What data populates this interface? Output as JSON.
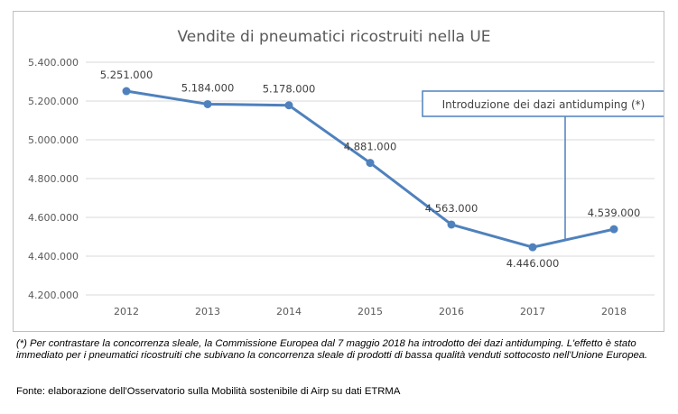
{
  "chart_data": {
    "type": "line",
    "title": "Vendite di pneumatici ricostruiti nella UE",
    "categories": [
      "2012",
      "2013",
      "2014",
      "2015",
      "2016",
      "2017",
      "2018"
    ],
    "series": [
      {
        "values": [
          5251000,
          5184000,
          5178000,
          4881000,
          4563000,
          4446000,
          4539000
        ],
        "labels": [
          "5.251.000",
          "5.184.000",
          "5.178.000",
          "4.881.000",
          "4.563.000",
          "4.446.000",
          "4.539.000"
        ],
        "color": "#4f81bd"
      }
    ],
    "ylim": [
      4200000,
      5400000
    ],
    "yticks": [
      4200000,
      4400000,
      4600000,
      4800000,
      5000000,
      5200000,
      5400000
    ],
    "ytick_labels": [
      "4.200.000",
      "4.400.000",
      "4.600.000",
      "4.800.000",
      "5.000.000",
      "5.200.000",
      "5.400.000"
    ],
    "grid": true,
    "legend": "none",
    "annotation": {
      "text": "Introduzione dei dazi antidumping (*)",
      "category_between": [
        "2017",
        "2018"
      ],
      "color": "#4f81bd"
    }
  },
  "footnote": "(*) Per contrastare la concorrenza sleale, la Commissione Europea dal 7 maggio 2018 ha introdotto dei dazi antidumping. L'effetto è stato immediato per i pneumatici ricostruiti che subivano la concorrenza sleale di prodotti di bassa qualità venduti sottocosto nell'Unione Europea.",
  "source": "Fonte: elaborazione dell'Osservatorio sulla Mobilità sostenibile di Airp su dati ETRMA",
  "colors": {
    "gridline": "#d9d9d9",
    "frame": "#bfbfbf",
    "axis_text": "#595959"
  }
}
